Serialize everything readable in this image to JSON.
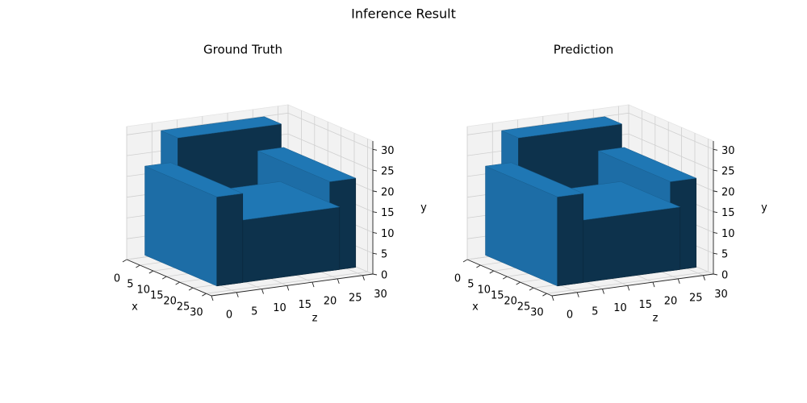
{
  "title": "Inference Result",
  "chart_data": [
    {
      "type": "voxel",
      "title": "Ground Truth",
      "xlabel": "x",
      "ylabel": "y",
      "zlabel": "z",
      "xlim": [
        0,
        32
      ],
      "ylim": [
        0,
        32
      ],
      "zlim": [
        0,
        32
      ],
      "xticks": [
        0,
        5,
        10,
        15,
        20,
        25,
        30
      ],
      "yticks": [
        0,
        5,
        10,
        15,
        20,
        25,
        30
      ],
      "zticks": [
        0,
        5,
        10,
        15,
        20,
        25,
        30
      ],
      "color": "#1f77b4",
      "grid": true
    },
    {
      "type": "voxel",
      "title": "Prediction",
      "xlabel": "x",
      "ylabel": "y",
      "zlabel": "z",
      "xlim": [
        0,
        32
      ],
      "ylim": [
        0,
        32
      ],
      "zlim": [
        0,
        32
      ],
      "xticks": [
        0,
        5,
        10,
        15,
        20,
        25,
        30
      ],
      "yticks": [
        0,
        5,
        10,
        15,
        20,
        25,
        30
      ],
      "zticks": [
        0,
        5,
        10,
        15,
        20,
        25,
        30
      ],
      "color": "#1f77b4",
      "grid": true
    }
  ]
}
